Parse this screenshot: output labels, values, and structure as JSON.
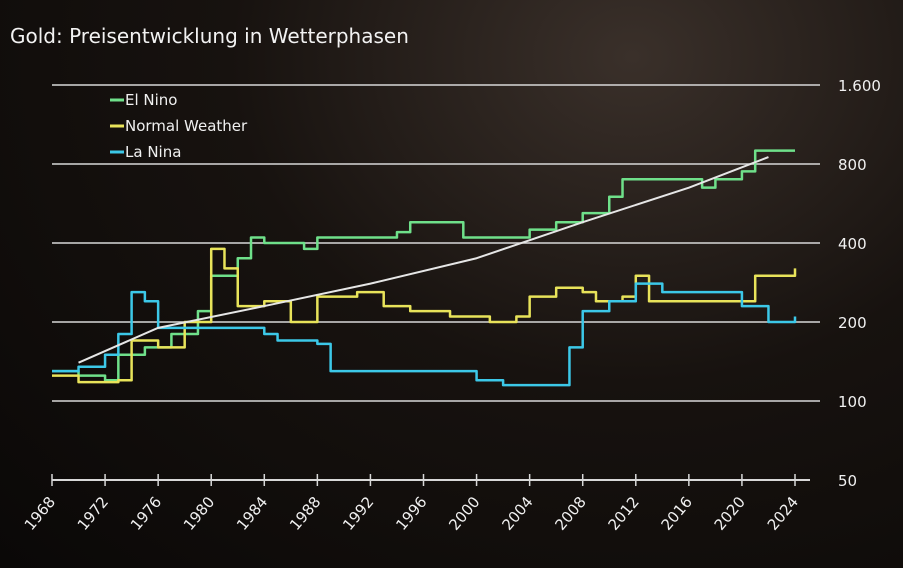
{
  "chart_data": {
    "type": "line",
    "title": "Gold: Preisentwicklung in Wetterphasen",
    "xlabel": "",
    "ylabel": "",
    "xlim": [
      1968,
      2024
    ],
    "ylim": [
      50,
      1600
    ],
    "y_scale": "log",
    "grid": true,
    "legend_placement": "top-left",
    "x_ticks": [
      "1968",
      "1972",
      "1976",
      "1980",
      "1984",
      "1988",
      "1992",
      "1996",
      "2000",
      "2004",
      "2008",
      "2012",
      "2016",
      "2020",
      "2024"
    ],
    "y_ticks": [
      "50",
      "100",
      "200",
      "400",
      "800",
      "1.600"
    ],
    "y_tick_values": [
      50,
      100,
      200,
      400,
      800,
      1600
    ],
    "series": [
      {
        "name": "El Nino",
        "color": "#6fe08a",
        "points": [
          [
            1968,
            130
          ],
          [
            1970,
            125
          ],
          [
            1972,
            120
          ],
          [
            1973,
            150
          ],
          [
            1975,
            160
          ],
          [
            1977,
            180
          ],
          [
            1979,
            220
          ],
          [
            1980,
            300
          ],
          [
            1981,
            300
          ],
          [
            1982,
            350
          ],
          [
            1983,
            420
          ],
          [
            1984,
            400
          ],
          [
            1986,
            400
          ],
          [
            1987,
            380
          ],
          [
            1988,
            420
          ],
          [
            1992,
            420
          ],
          [
            1994,
            440
          ],
          [
            1995,
            480
          ],
          [
            1998,
            480
          ],
          [
            1999,
            420
          ],
          [
            2003,
            420
          ],
          [
            2004,
            450
          ],
          [
            2006,
            480
          ],
          [
            2008,
            520
          ],
          [
            2010,
            600
          ],
          [
            2011,
            700
          ],
          [
            2016,
            700
          ],
          [
            2017,
            650
          ],
          [
            2018,
            700
          ],
          [
            2020,
            750
          ],
          [
            2021,
            900
          ],
          [
            2024,
            900
          ]
        ]
      },
      {
        "name": "Normal Weather",
        "color": "#e8e35a",
        "points": [
          [
            1968,
            125
          ],
          [
            1970,
            118
          ],
          [
            1973,
            120
          ],
          [
            1974,
            170
          ],
          [
            1976,
            160
          ],
          [
            1978,
            200
          ],
          [
            1980,
            380
          ],
          [
            1981,
            320
          ],
          [
            1982,
            230
          ],
          [
            1984,
            240
          ],
          [
            1986,
            200
          ],
          [
            1988,
            250
          ],
          [
            1991,
            260
          ],
          [
            1993,
            230
          ],
          [
            1995,
            220
          ],
          [
            1998,
            210
          ],
          [
            2001,
            200
          ],
          [
            2003,
            210
          ],
          [
            2004,
            250
          ],
          [
            2006,
            270
          ],
          [
            2008,
            260
          ],
          [
            2009,
            240
          ],
          [
            2011,
            250
          ],
          [
            2012,
            300
          ],
          [
            2013,
            240
          ],
          [
            2016,
            240
          ],
          [
            2020,
            240
          ],
          [
            2021,
            300
          ],
          [
            2024,
            320
          ]
        ]
      },
      {
        "name": "La Nina",
        "color": "#3cc8e8",
        "points": [
          [
            1968,
            130
          ],
          [
            1970,
            135
          ],
          [
            1972,
            150
          ],
          [
            1973,
            180
          ],
          [
            1974,
            260
          ],
          [
            1975,
            240
          ],
          [
            1976,
            190
          ],
          [
            1980,
            190
          ],
          [
            1984,
            180
          ],
          [
            1985,
            170
          ],
          [
            1988,
            165
          ],
          [
            1989,
            130
          ],
          [
            1994,
            130
          ],
          [
            1998,
            130
          ],
          [
            2000,
            120
          ],
          [
            2002,
            115
          ],
          [
            2006,
            115
          ],
          [
            2007,
            160
          ],
          [
            2008,
            220
          ],
          [
            2010,
            240
          ],
          [
            2012,
            280
          ],
          [
            2014,
            260
          ],
          [
            2020,
            230
          ],
          [
            2022,
            200
          ],
          [
            2024,
            210
          ]
        ]
      },
      {
        "color": "#e6e6e6",
        "points": [
          [
            1970,
            140
          ],
          [
            1976,
            190
          ],
          [
            1984,
            230
          ],
          [
            1992,
            280
          ],
          [
            2000,
            350
          ],
          [
            2008,
            480
          ],
          [
            2016,
            650
          ],
          [
            2022,
            850
          ]
        ]
      }
    ]
  }
}
